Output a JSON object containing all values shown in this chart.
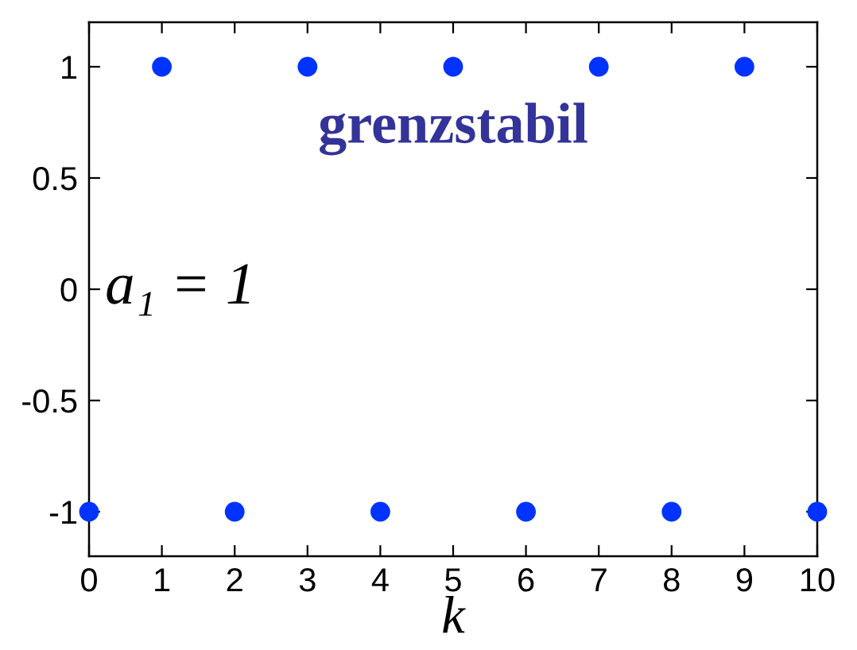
{
  "chart_data": {
    "type": "scatter",
    "xlabel": "k",
    "x": [
      0,
      1,
      2,
      3,
      4,
      5,
      6,
      7,
      8,
      9,
      10
    ],
    "values": [
      -1,
      1,
      -1,
      1,
      -1,
      1,
      -1,
      1,
      -1,
      1,
      -1
    ],
    "color": "#0033ff",
    "marker": "circle",
    "xlim": [
      0,
      10
    ],
    "xticks": [
      0,
      1,
      2,
      3,
      4,
      5,
      6,
      7,
      8,
      9,
      10
    ],
    "ylim": [
      -1.2,
      1.2
    ],
    "yticks": [
      -1,
      -0.5,
      0,
      0.5,
      1
    ],
    "annotations": [
      "grenzstabil",
      "a₁ = 1"
    ]
  }
}
